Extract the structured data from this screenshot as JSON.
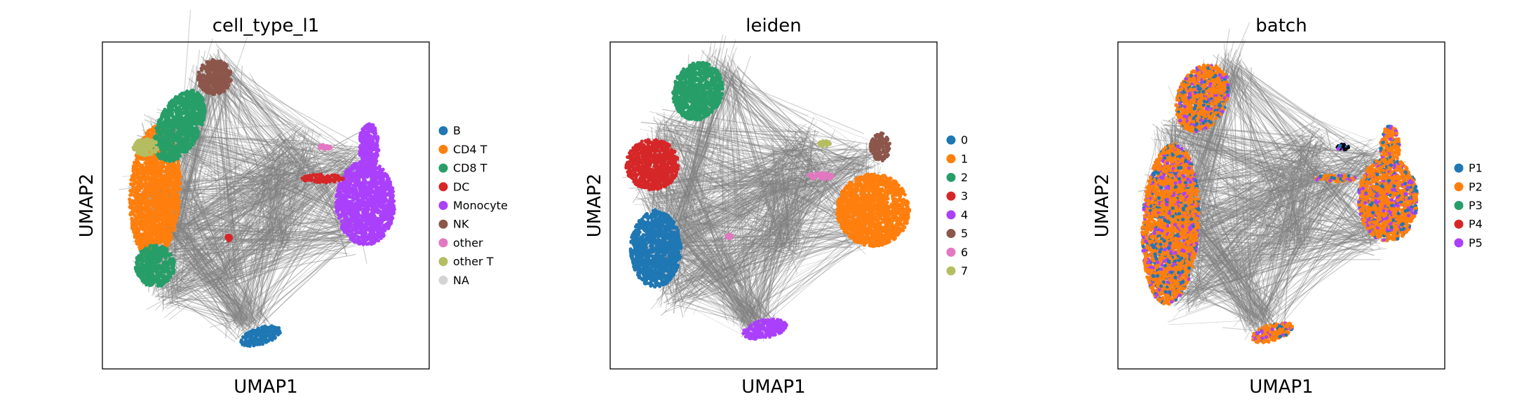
{
  "chart_data": [
    {
      "type": "scatter",
      "title": "cell_type_l1",
      "xlabel": "UMAP1",
      "ylabel": "UMAP2",
      "grid": false,
      "ticks": "none",
      "legend_position": "right",
      "legend": [
        {
          "label": "B",
          "color": "#1f77b4"
        },
        {
          "label": "CD4 T",
          "color": "#ff7f0e"
        },
        {
          "label": "CD8 T",
          "color": "#279e68"
        },
        {
          "label": "DC",
          "color": "#d62728"
        },
        {
          "label": "Monocytes",
          "color": "#aa40fc"
        },
        {
          "label": "NK",
          "color": "#8c564b"
        },
        {
          "label": "other",
          "color": "#e377c2"
        },
        {
          "label": "other T",
          "color": "#b5bd61"
        },
        {
          "label": "NA",
          "color": "#d3d3d3"
        }
      ]
    },
    {
      "type": "scatter",
      "title": "leiden",
      "xlabel": "UMAP1",
      "ylabel": "UMAP2",
      "grid": false,
      "ticks": "none",
      "legend_position": "right",
      "legend": [
        {
          "label": "0",
          "color": "#1f77b4"
        },
        {
          "label": "1",
          "color": "#ff7f0e"
        },
        {
          "label": "2",
          "color": "#279e68"
        },
        {
          "label": "3",
          "color": "#d62728"
        },
        {
          "label": "4",
          "color": "#aa40fc"
        },
        {
          "label": "5",
          "color": "#8c564b"
        },
        {
          "label": "6",
          "color": "#e377c2"
        },
        {
          "label": "7",
          "color": "#b5bd61"
        }
      ]
    },
    {
      "type": "scatter",
      "title": "batch",
      "xlabel": "UMAP1",
      "ylabel": "UMAP2",
      "grid": false,
      "ticks": "none",
      "legend_position": "right",
      "legend": [
        {
          "label": "P1",
          "color": "#1f77b4"
        },
        {
          "label": "P2",
          "color": "#ff7f0e"
        },
        {
          "label": "P3",
          "color": "#279e68"
        },
        {
          "label": "P4",
          "color": "#d62728"
        },
        {
          "label": "P5",
          "color": "#aa40fc"
        }
      ]
    }
  ]
}
